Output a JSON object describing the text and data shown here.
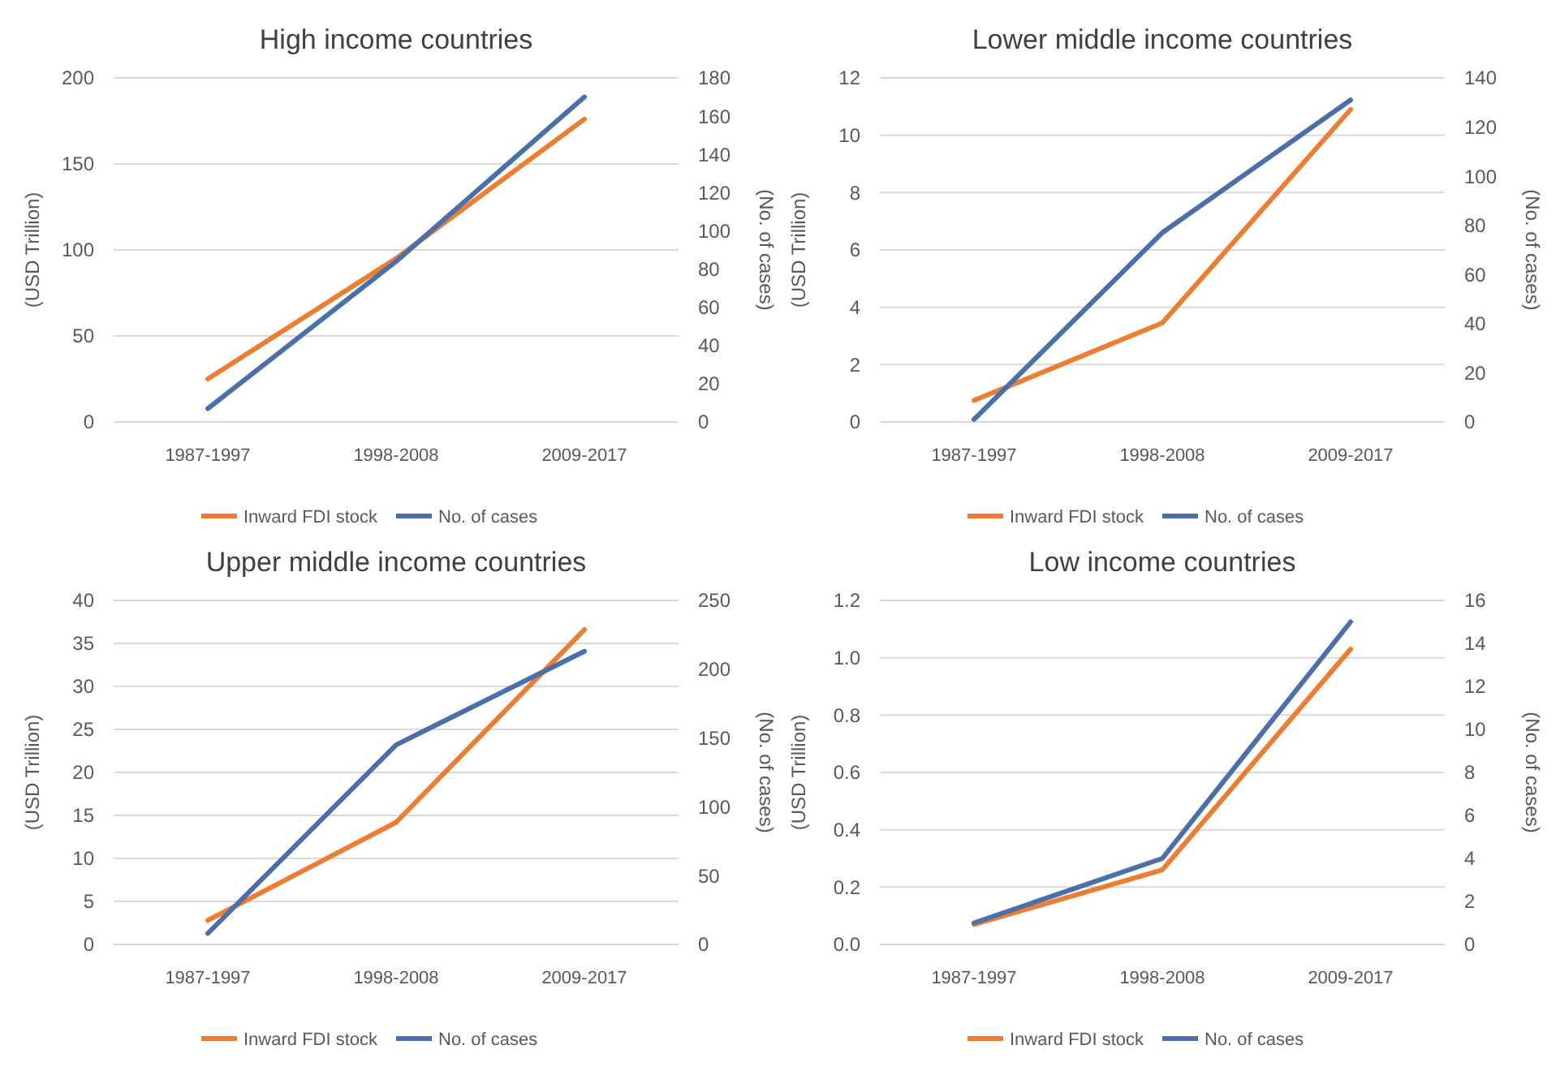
{
  "chart_data": [
    {
      "type": "line",
      "title": "High income countries",
      "ylabel": "(USD Trillion)",
      "y2label": "(No. of cases)",
      "categories": [
        "1987-1997",
        "1998-2008",
        "2009-2017"
      ],
      "ylim": [
        0,
        200
      ],
      "yticks": [
        0,
        50,
        100,
        150,
        200
      ],
      "y2lim": [
        0,
        180
      ],
      "y2ticks": [
        0,
        20,
        40,
        60,
        80,
        100,
        120,
        140,
        160,
        180
      ],
      "grid": "y",
      "legend": "bottom",
      "series": [
        {
          "name": "Inward FDI stock",
          "color": "#ed7d31",
          "values": [
            25,
            95,
            176
          ]
        },
        {
          "name": "No. of cases",
          "color": "#4a6fa9",
          "axis": "y2",
          "values": [
            7,
            84,
            170
          ]
        }
      ]
    },
    {
      "type": "line",
      "title": "Lower middle income countries",
      "ylabel": "(USD Trillion)",
      "y2label": "(No. of cases)",
      "categories": [
        "1987-1997",
        "1998-2008",
        "2009-2017"
      ],
      "ylim": [
        0,
        12
      ],
      "yticks": [
        0,
        2,
        4,
        6,
        8,
        10,
        12
      ],
      "y2lim": [
        0,
        140
      ],
      "y2ticks": [
        0,
        20,
        40,
        60,
        80,
        100,
        120,
        140
      ],
      "grid": "y",
      "legend": "bottom",
      "series": [
        {
          "name": "Inward FDI stock",
          "color": "#ed7d31",
          "values": [
            0.75,
            3.45,
            10.9
          ]
        },
        {
          "name": "No. of cases",
          "color": "#4a6fa9",
          "axis": "y2",
          "values": [
            1,
            77,
            131
          ]
        }
      ]
    },
    {
      "type": "line",
      "title": "Upper middle income countries",
      "ylabel": "(USD Trillion)",
      "y2label": "(No. of cases)",
      "categories": [
        "1987-1997",
        "1998-2008",
        "2009-2017"
      ],
      "ylim": [
        0,
        40
      ],
      "yticks": [
        0,
        5,
        10,
        15,
        20,
        25,
        30,
        35,
        40
      ],
      "y2lim": [
        0,
        250
      ],
      "y2ticks": [
        0,
        50,
        100,
        150,
        200,
        250
      ],
      "grid": "y",
      "legend": "bottom",
      "series": [
        {
          "name": "Inward FDI stock",
          "color": "#ed7d31",
          "values": [
            2.8,
            14.2,
            36.6
          ]
        },
        {
          "name": "No. of cases",
          "color": "#4a6fa9",
          "axis": "y2",
          "values": [
            8,
            145,
            213
          ]
        }
      ]
    },
    {
      "type": "line",
      "title": "Low income countries",
      "ylabel": "(USD Trillion)",
      "y2label": "(No. of cases)",
      "categories": [
        "1987-1997",
        "1998-2008",
        "2009-2017"
      ],
      "ylim": [
        0,
        1.2
      ],
      "yticks": [
        {
          "value": 0,
          "label": "0.0"
        },
        0.2,
        0.4,
        0.6,
        0.8,
        {
          "value": 1,
          "label": "1.0"
        },
        1.2
      ],
      "y2lim": [
        0,
        16
      ],
      "y2ticks": [
        0,
        2,
        4,
        6,
        8,
        10,
        12,
        14,
        16
      ],
      "grid": "y",
      "legend": "bottom",
      "series": [
        {
          "name": "Inward FDI stock",
          "color": "#ed7d31",
          "values": [
            0.07,
            0.26,
            1.03
          ]
        },
        {
          "name": "No. of cases",
          "color": "#4a6fa9",
          "axis": "y2",
          "values": [
            1,
            4,
            15
          ]
        }
      ]
    }
  ]
}
